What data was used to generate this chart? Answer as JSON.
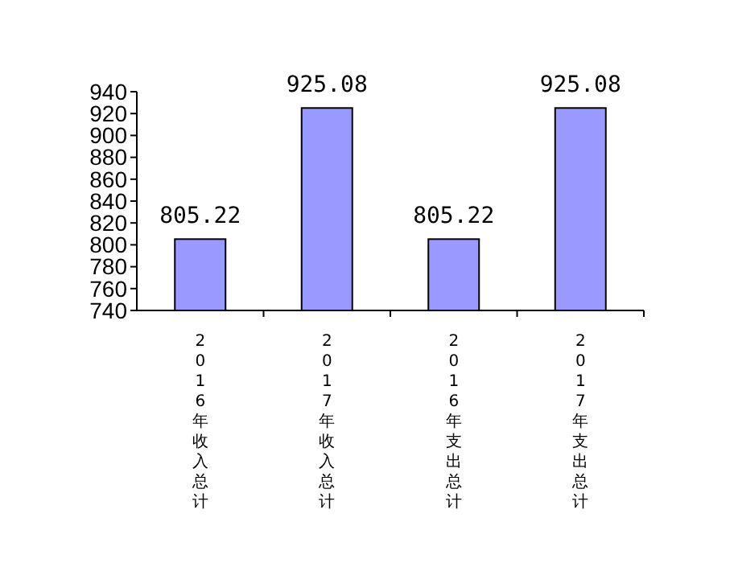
{
  "chart_data": {
    "type": "bar",
    "categories": [
      "2016年收入总计",
      "2017年收入总计",
      "2016年支出总计",
      "2017年支出总计"
    ],
    "values": [
      805.22,
      925.08,
      805.22,
      925.08
    ],
    "color": "#9999ff",
    "ylim": [
      740,
      940
    ],
    "yticks": [
      740,
      760,
      780,
      800,
      820,
      840,
      860,
      880,
      900,
      920,
      940
    ],
    "data_labels": true
  }
}
